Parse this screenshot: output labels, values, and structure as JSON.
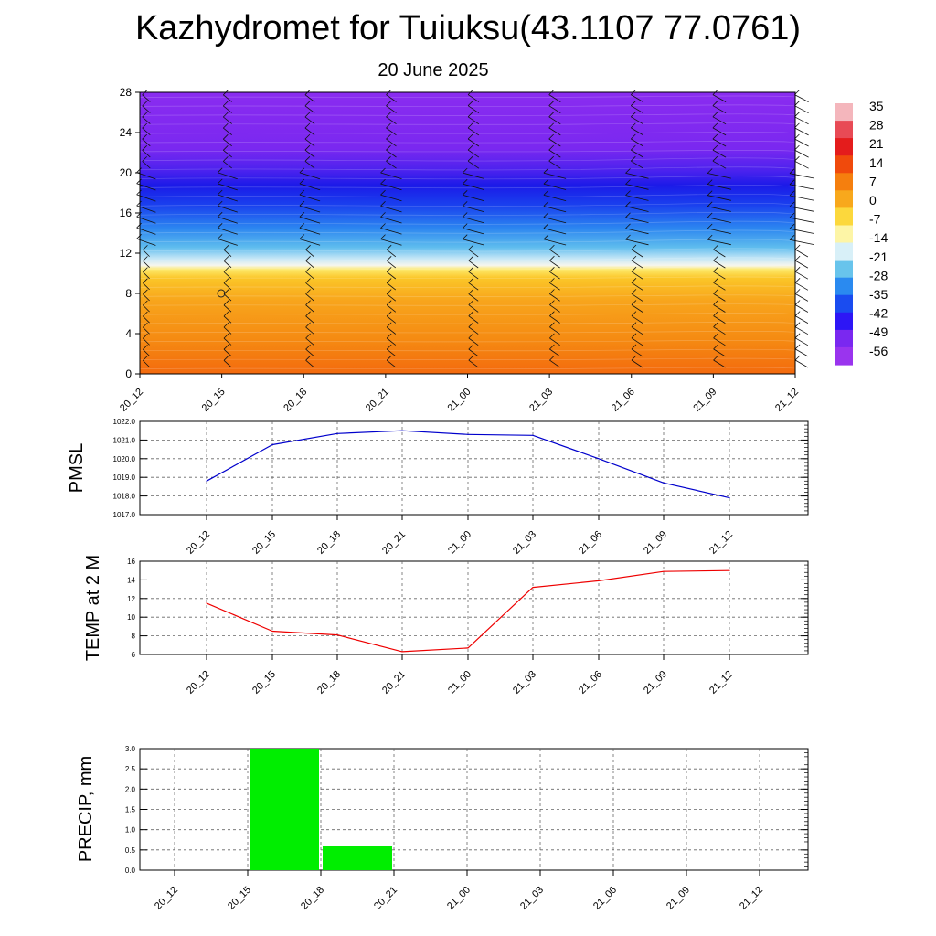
{
  "title": "Kazhydromet for Tuiuksu(43.1107 77.0761)",
  "subtitle": "20 June 2025",
  "time_labels": [
    "20_12",
    "20_15",
    "20_18",
    "20_21",
    "21_00",
    "21_03",
    "21_06",
    "21_09",
    "21_12"
  ],
  "chart_data": [
    {
      "type": "heatmap",
      "ylim": [
        0,
        28
      ],
      "yticks": [
        "0",
        "4",
        "8",
        "12",
        "16",
        "20",
        "24",
        "28"
      ],
      "colorbar_labels": [
        "35",
        "28",
        "21",
        "14",
        "7",
        "0",
        "-7",
        "-14",
        "-21",
        "-28",
        "-35",
        "-42",
        "-49",
        "-56"
      ],
      "colorbar_colors": [
        "#f4b6bc",
        "#e84a55",
        "#e41c1c",
        "#f04a0c",
        "#f57f0e",
        "#f8a81c",
        "#fcd83c",
        "#fdf5a6",
        "#d8f0f8",
        "#68c4ec",
        "#2a8af0",
        "#1a4cf0",
        "#2d16f6",
        "#7a28f0",
        "#9a34ee"
      ],
      "wind_barbs": true
    },
    {
      "type": "line",
      "ylabel": "PMSL",
      "ylim": [
        1017,
        1022
      ],
      "yticks": [
        "1017.0",
        "1018.0",
        "1019.0",
        "1020.0",
        "1021.0",
        "1022.0"
      ],
      "categories": [
        "20_12",
        "20_15",
        "20_18",
        "20_21",
        "21_00",
        "21_03",
        "21_06",
        "21_09",
        "21_12"
      ],
      "values": [
        1018.8,
        1020.75,
        1021.35,
        1021.5,
        1021.3,
        1021.25,
        1020.0,
        1018.7,
        1017.9
      ],
      "color": "#0000cc"
    },
    {
      "type": "line",
      "ylabel": "TEMP at 2 M",
      "ylim": [
        6,
        16
      ],
      "yticks": [
        "6",
        "8",
        "10",
        "12",
        "14",
        "16"
      ],
      "categories": [
        "20_12",
        "20_15",
        "20_18",
        "20_21",
        "21_00",
        "21_03",
        "21_06",
        "21_09",
        "21_12"
      ],
      "values": [
        11.5,
        8.5,
        8.1,
        6.3,
        6.7,
        13.2,
        13.9,
        14.9,
        15.0
      ],
      "color": "#ee0000"
    },
    {
      "type": "bar",
      "ylabel": "PRECIP, mm",
      "ylim": [
        0,
        3
      ],
      "yticks": [
        "0.0",
        "0.5",
        "1.0",
        "1.5",
        "2.0",
        "2.5",
        "3.0"
      ],
      "categories": [
        "20_12",
        "20_15",
        "20_18",
        "20_21",
        "21_00",
        "21_03",
        "21_06",
        "21_09",
        "21_12"
      ],
      "values": [
        0,
        3.0,
        0.6,
        0,
        0,
        0,
        0,
        0,
        0
      ],
      "color": "#00ee00"
    }
  ]
}
